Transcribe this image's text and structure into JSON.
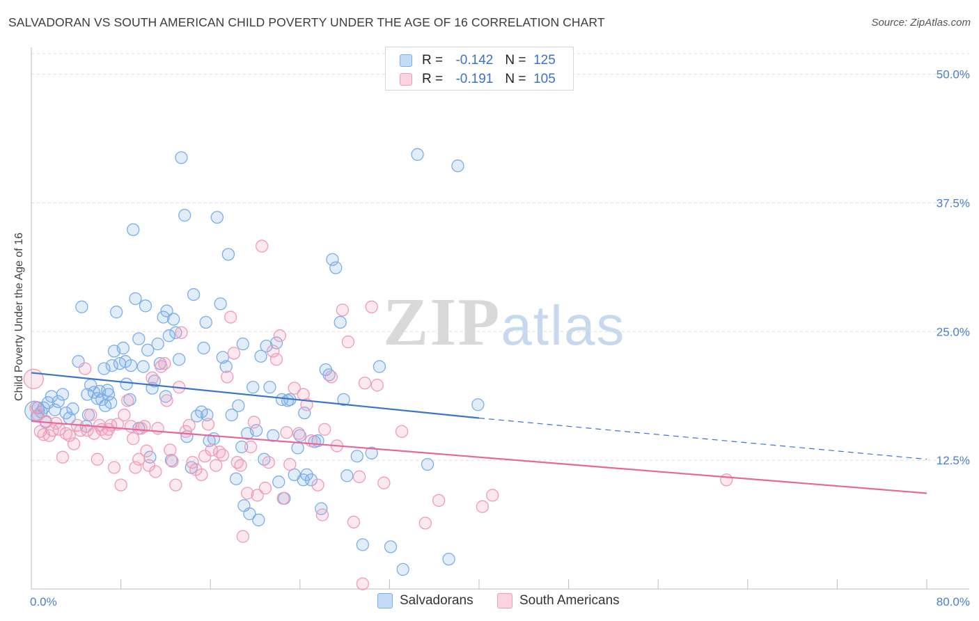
{
  "header": {
    "title": "SALVADORAN VS SOUTH AMERICAN CHILD POVERTY UNDER THE AGE OF 16 CORRELATION CHART",
    "source": "Source: ZipAtlas.com"
  },
  "legend_top": {
    "rows": [
      {
        "r_label": "R =",
        "r_value": "-0.142",
        "n_label": "N =",
        "n_value": "125",
        "color": "#7aaee8",
        "fill": "#c5dbf5"
      },
      {
        "r_label": "R =",
        "r_value": "-0.191",
        "n_label": "N =",
        "n_value": "105",
        "color": "#f09ab8",
        "fill": "#fbd3e1"
      }
    ]
  },
  "watermark": {
    "zip": "ZIP",
    "atlas": "atlas"
  },
  "chart_data": {
    "type": "scatter",
    "title": "SALVADORAN VS SOUTH AMERICAN CHILD POVERTY UNDER THE AGE OF 16 CORRELATION CHART",
    "xlabel": "",
    "ylabel": "Child Poverty Under the Age of 16",
    "xlim": [
      0,
      80
    ],
    "ylim": [
      0,
      52
    ],
    "x_tick_labels": [
      "0.0%",
      "80.0%"
    ],
    "y_ticks": [
      12.5,
      25.0,
      37.5,
      50.0
    ],
    "y_tick_labels": [
      "12.5%",
      "25.0%",
      "37.5%",
      "50.0%"
    ],
    "grid": "horizontal dashed",
    "legend_position": "bottom-center",
    "series": [
      {
        "name": "Salvadorans",
        "color": "#7aaee8",
        "trend": {
          "x": [
            0,
            40
          ],
          "y": [
            21.0,
            16.6
          ],
          "dashed_to": [
            80,
            12.6
          ],
          "color": "#3a74c9"
        },
        "points": [
          [
            0.3,
            17.3
          ],
          [
            0.5,
            16.8
          ],
          [
            0.6,
            17.6
          ],
          [
            0.9,
            17.2
          ],
          [
            1.1,
            17.6
          ],
          [
            1.3,
            16.2
          ],
          [
            1.5,
            18.1
          ],
          [
            1.8,
            18.7
          ],
          [
            2.1,
            17.4
          ],
          [
            2.4,
            18.2
          ],
          [
            2.8,
            18.9
          ],
          [
            3.1,
            17.1
          ],
          [
            3.4,
            16.6
          ],
          [
            3.7,
            17.5
          ],
          [
            4.2,
            22.1
          ],
          [
            4.5,
            27.4
          ],
          [
            4.9,
            15.8
          ],
          [
            5.0,
            18.9
          ],
          [
            5.1,
            16.9
          ],
          [
            5.3,
            19.8
          ],
          [
            5.6,
            19.1
          ],
          [
            5.9,
            18.5
          ],
          [
            6.1,
            19.2
          ],
          [
            6.3,
            18.4
          ],
          [
            6.6,
            17.8
          ],
          [
            6.8,
            19.3
          ],
          [
            6.9,
            18.9
          ],
          [
            7.1,
            18.1
          ],
          [
            7.2,
            21.7
          ],
          [
            7.4,
            23.1
          ],
          [
            7.6,
            26.9
          ],
          [
            7.9,
            21.9
          ],
          [
            8.2,
            23.4
          ],
          [
            8.5,
            19.9
          ],
          [
            8.8,
            18.4
          ],
          [
            8.9,
            21.7
          ],
          [
            9.1,
            34.9
          ],
          [
            9.3,
            28.2
          ],
          [
            9.6,
            24.3
          ],
          [
            10.0,
            21.6
          ],
          [
            10.2,
            27.5
          ],
          [
            10.4,
            23.2
          ],
          [
            10.6,
            12.8
          ],
          [
            10.8,
            19.5
          ],
          [
            11.0,
            20.2
          ],
          [
            11.3,
            23.8
          ],
          [
            11.5,
            21.9
          ],
          [
            11.8,
            26.4
          ],
          [
            12.1,
            27.0
          ],
          [
            12.3,
            24.6
          ],
          [
            12.5,
            12.5
          ],
          [
            12.7,
            26.2
          ],
          [
            12.9,
            24.9
          ],
          [
            13.2,
            22.3
          ],
          [
            13.4,
            41.9
          ],
          [
            13.7,
            36.3
          ],
          [
            13.9,
            14.8
          ],
          [
            14.3,
            11.8
          ],
          [
            14.5,
            28.6
          ],
          [
            14.8,
            16.8
          ],
          [
            15.2,
            17.2
          ],
          [
            15.4,
            23.4
          ],
          [
            15.6,
            25.9
          ],
          [
            15.9,
            14.4
          ],
          [
            16.3,
            14.6
          ],
          [
            16.6,
            36.1
          ],
          [
            16.9,
            27.7
          ],
          [
            17.1,
            22.5
          ],
          [
            17.4,
            21.6
          ],
          [
            17.6,
            32.5
          ],
          [
            17.9,
            16.9
          ],
          [
            18.3,
            10.7
          ],
          [
            18.5,
            17.8
          ],
          [
            18.8,
            13.8
          ],
          [
            19.0,
            8.1
          ],
          [
            19.3,
            15.1
          ],
          [
            19.5,
            7.3
          ],
          [
            19.8,
            19.6
          ],
          [
            20.1,
            15.4
          ],
          [
            20.3,
            6.7
          ],
          [
            20.5,
            22.6
          ],
          [
            20.8,
            12.6
          ],
          [
            21.0,
            23.6
          ],
          [
            21.3,
            19.6
          ],
          [
            21.6,
            14.9
          ],
          [
            21.9,
            23.9
          ],
          [
            22.1,
            10.4
          ],
          [
            22.4,
            18.4
          ],
          [
            22.6,
            8.8
          ],
          [
            22.9,
            18.3
          ],
          [
            23.1,
            18.4
          ],
          [
            23.5,
            11.1
          ],
          [
            23.8,
            13.7
          ],
          [
            24.0,
            14.9
          ],
          [
            24.3,
            10.6
          ],
          [
            24.6,
            11.1
          ],
          [
            25.0,
            10.6
          ],
          [
            25.3,
            14.3
          ],
          [
            25.6,
            14.4
          ],
          [
            25.9,
            7.8
          ],
          [
            26.3,
            21.3
          ],
          [
            26.6,
            20.8
          ],
          [
            26.9,
            32.0
          ],
          [
            27.2,
            31.2
          ],
          [
            27.6,
            25.9
          ],
          [
            27.9,
            18.4
          ],
          [
            28.2,
            11.0
          ],
          [
            29.1,
            12.9
          ],
          [
            29.6,
            4.3
          ],
          [
            30.4,
            13.2
          ],
          [
            31.1,
            21.6
          ],
          [
            32.1,
            4.1
          ],
          [
            33.2,
            1.9
          ],
          [
            34.5,
            42.2
          ],
          [
            35.4,
            12.1
          ],
          [
            37.3,
            2.9
          ],
          [
            38.1,
            41.1
          ],
          [
            39.9,
            17.9
          ],
          [
            8.4,
            22.1
          ],
          [
            6.5,
            21.4
          ],
          [
            15.7,
            16.9
          ],
          [
            18.9,
            23.8
          ],
          [
            24.4,
            17.1
          ],
          [
            12.0,
            18.7
          ],
          [
            9.6,
            15.6
          ]
        ]
      },
      {
        "name": "South Americans",
        "color": "#f09ab8",
        "trend": {
          "x": [
            0,
            80
          ],
          "y": [
            16.3,
            9.3
          ],
          "color": "#e8679a"
        },
        "points": [
          [
            0.2,
            20.4
          ],
          [
            0.4,
            17.6
          ],
          [
            0.6,
            16.9
          ],
          [
            0.8,
            15.3
          ],
          [
            1.1,
            15.0
          ],
          [
            1.3,
            16.3
          ],
          [
            1.6,
            14.9
          ],
          [
            1.9,
            15.4
          ],
          [
            2.2,
            16.1
          ],
          [
            2.5,
            15.5
          ],
          [
            2.8,
            12.8
          ],
          [
            3.1,
            15.1
          ],
          [
            3.4,
            14.9
          ],
          [
            3.8,
            14.1
          ],
          [
            4.1,
            15.9
          ],
          [
            4.4,
            15.4
          ],
          [
            4.8,
            21.4
          ],
          [
            5.0,
            15.4
          ],
          [
            5.3,
            16.9
          ],
          [
            5.6,
            15.1
          ],
          [
            5.9,
            12.6
          ],
          [
            6.1,
            15.9
          ],
          [
            6.3,
            15.5
          ],
          [
            6.7,
            15.1
          ],
          [
            6.9,
            15.5
          ],
          [
            7.1,
            15.9
          ],
          [
            7.4,
            11.8
          ],
          [
            7.7,
            16.0
          ],
          [
            8.0,
            10.1
          ],
          [
            8.3,
            16.9
          ],
          [
            8.6,
            18.3
          ],
          [
            8.9,
            15.8
          ],
          [
            9.1,
            14.6
          ],
          [
            9.3,
            11.8
          ],
          [
            9.6,
            12.6
          ],
          [
            9.8,
            15.6
          ],
          [
            10.1,
            15.8
          ],
          [
            10.3,
            13.4
          ],
          [
            10.5,
            12.0
          ],
          [
            10.8,
            20.5
          ],
          [
            11.1,
            11.4
          ],
          [
            11.3,
            15.6
          ],
          [
            11.6,
            21.6
          ],
          [
            11.9,
            21.9
          ],
          [
            12.1,
            18.3
          ],
          [
            12.4,
            13.5
          ],
          [
            12.6,
            12.4
          ],
          [
            12.9,
            10.1
          ],
          [
            13.2,
            19.6
          ],
          [
            13.4,
            24.9
          ],
          [
            13.8,
            15.3
          ],
          [
            14.1,
            15.9
          ],
          [
            14.4,
            12.3
          ],
          [
            14.7,
            11.6
          ],
          [
            15.2,
            11.1
          ],
          [
            15.5,
            12.9
          ],
          [
            15.8,
            16.0
          ],
          [
            16.1,
            13.5
          ],
          [
            16.5,
            12.0
          ],
          [
            16.8,
            13.3
          ],
          [
            17.1,
            13.0
          ],
          [
            17.5,
            20.6
          ],
          [
            17.8,
            26.4
          ],
          [
            18.1,
            22.9
          ],
          [
            18.4,
            12.3
          ],
          [
            18.7,
            12.0
          ],
          [
            18.9,
            5.1
          ],
          [
            19.3,
            9.3
          ],
          [
            19.6,
            13.8
          ],
          [
            19.9,
            16.2
          ],
          [
            20.2,
            9.1
          ],
          [
            20.6,
            33.3
          ],
          [
            20.9,
            9.8
          ],
          [
            21.2,
            12.3
          ],
          [
            21.6,
            23.1
          ],
          [
            21.9,
            22.3
          ],
          [
            22.2,
            24.6
          ],
          [
            22.5,
            8.8
          ],
          [
            22.8,
            15.2
          ],
          [
            23.1,
            12.1
          ],
          [
            23.5,
            19.5
          ],
          [
            23.9,
            15.1
          ],
          [
            24.3,
            18.9
          ],
          [
            24.6,
            17.9
          ],
          [
            25.0,
            14.4
          ],
          [
            25.6,
            10.1
          ],
          [
            26.2,
            15.5
          ],
          [
            26.8,
            20.6
          ],
          [
            27.3,
            13.9
          ],
          [
            27.8,
            27.1
          ],
          [
            28.3,
            24.0
          ],
          [
            28.8,
            6.5
          ],
          [
            29.3,
            10.9
          ],
          [
            29.8,
            20.0
          ],
          [
            30.4,
            27.4
          ],
          [
            30.9,
            19.8
          ],
          [
            31.5,
            10.3
          ],
          [
            33.1,
            15.3
          ],
          [
            35.2,
            6.4
          ],
          [
            36.4,
            8.6
          ],
          [
            40.3,
            8.0
          ],
          [
            41.2,
            9.1
          ],
          [
            62.1,
            10.6
          ],
          [
            29.6,
            0.5
          ],
          [
            26.0,
            7.2
          ]
        ]
      }
    ]
  },
  "bottom_legend": {
    "items": [
      {
        "label": "Salvadorans",
        "color": "#7aaee8",
        "fill": "#c5dbf5"
      },
      {
        "label": "South Americans",
        "color": "#f09ab8",
        "fill": "#fbd3e1"
      }
    ]
  }
}
